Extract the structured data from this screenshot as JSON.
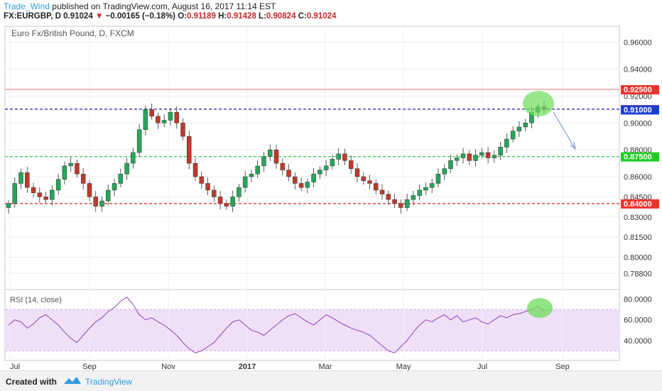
{
  "header": {
    "author": "Trade_Wind",
    "published_text": "published on TradingView.com, August 16, 2017 11:14 EST",
    "symbol": "FX:EURGBP, D",
    "last": "0.91024",
    "change_arrow": "▼",
    "change": "−0.00165 (−0.18%)",
    "open_label": "O:",
    "open": "0.91189",
    "high_label": "H:",
    "high": "0.91428",
    "low_label": "L:",
    "low": "0.90824",
    "close_label": "C:",
    "close": "0.91024"
  },
  "footer": {
    "created_with": "Created with",
    "brand": "TradingView"
  },
  "chart_data": [
    {
      "type": "candlestick",
      "title": "Euro Fx/British Pound, D, FXCM",
      "x_tick_labels": [
        "Jul",
        "Sep",
        "Nov",
        "2017",
        "Mar",
        "May",
        "Jul",
        "Sep"
      ],
      "y_tick_labels": [
        "0.96000",
        "0.94000",
        "0.92000",
        "0.90000",
        "0.88000",
        "0.86000",
        "0.84500",
        "0.83000",
        "0.81500",
        "0.80000",
        "0.78800"
      ],
      "ylim": [
        0.776,
        0.972
      ],
      "series": [
        {
          "values": [
            0.84,
            0.855,
            0.863,
            0.852,
            0.848,
            0.845,
            0.843,
            0.85,
            0.858,
            0.868,
            0.87,
            0.862,
            0.855,
            0.845,
            0.838,
            0.842,
            0.85,
            0.855,
            0.862,
            0.87,
            0.878,
            0.895,
            0.91,
            0.905,
            0.9,
            0.902,
            0.908,
            0.9,
            0.89,
            0.87,
            0.86,
            0.855,
            0.85,
            0.845,
            0.84,
            0.838,
            0.845,
            0.852,
            0.86,
            0.862,
            0.868,
            0.875,
            0.88,
            0.87,
            0.865,
            0.86,
            0.855,
            0.852,
            0.856,
            0.862,
            0.865,
            0.868,
            0.873,
            0.877,
            0.872,
            0.866,
            0.86,
            0.857,
            0.855,
            0.85,
            0.847,
            0.843,
            0.84,
            0.837,
            0.843,
            0.846,
            0.85,
            0.852,
            0.855,
            0.862,
            0.866,
            0.872,
            0.874,
            0.877,
            0.872,
            0.876,
            0.878,
            0.874,
            0.876,
            0.882,
            0.888,
            0.894,
            0.897,
            0.9,
            0.908,
            0.912,
            0.91
          ]
        }
      ],
      "lines": [
        {
          "label": "0.92500",
          "value": 0.925,
          "style": "solid",
          "color": "#f09090",
          "label_bg": "#e8342d"
        },
        {
          "label": "0.91024",
          "value": 0.91024,
          "style": "dashed",
          "color": "#1a1aa8",
          "label_bg": "#f06060"
        },
        {
          "label": "0.91000",
          "value": 0.91,
          "style": "none",
          "color": "#1a1aa8",
          "label_bg": "#1a3fd0"
        },
        {
          "label": "0.87500",
          "value": 0.875,
          "style": "dashed",
          "color": "#2ecc40",
          "label_bg": "#22cc22"
        },
        {
          "label": "0.84000",
          "value": 0.84,
          "style": "dashed",
          "color": "#e02020",
          "label_bg": "#e8342d"
        }
      ],
      "colors": {
        "up": "#26a65b",
        "down": "#c0392b"
      },
      "grid": true
    },
    {
      "type": "line",
      "title": "RSI (14, close)",
      "y_tick_labels": [
        "80.0000",
        "60.0000",
        "40.0000"
      ],
      "ylim": [
        22,
        88
      ],
      "band": [
        30,
        70
      ],
      "series": [
        {
          "values": [
            55,
            60,
            58,
            52,
            56,
            62,
            65,
            60,
            55,
            48,
            42,
            38,
            45,
            52,
            58,
            62,
            68,
            72,
            78,
            82,
            75,
            65,
            60,
            62,
            58,
            55,
            50,
            45,
            38,
            32,
            28,
            30,
            34,
            38,
            45,
            52,
            58,
            60,
            55,
            50,
            48,
            45,
            50,
            55,
            60,
            64,
            66,
            62,
            58,
            55,
            60,
            65,
            62,
            58,
            55,
            52,
            50,
            48,
            45,
            40,
            35,
            30,
            28,
            34,
            40,
            48,
            55,
            60,
            58,
            62,
            65,
            60,
            64,
            58,
            60,
            62,
            58,
            56,
            60,
            64,
            62,
            65,
            66,
            68,
            70,
            73,
            69
          ]
        }
      ],
      "colors": {
        "line": "#8e44ad",
        "band_fill": "#efe0f8"
      }
    }
  ]
}
